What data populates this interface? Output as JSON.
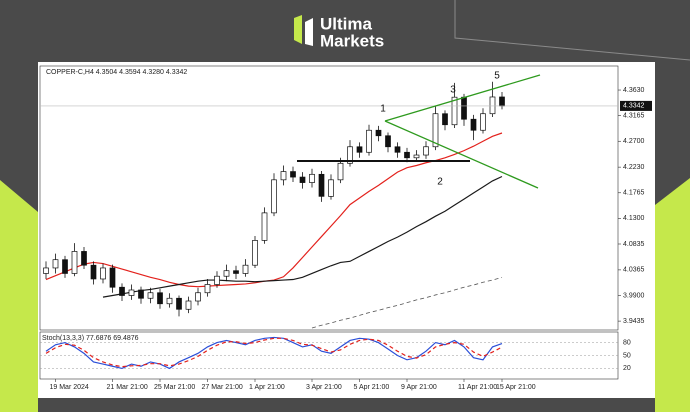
{
  "brand": [
    "Ultima",
    "Markets"
  ],
  "chart_data": {
    "type": "candlestick",
    "title": "COPPER-C,H4 4.3504 4.3594 4.3280 4.3342",
    "categories": [
      null,
      "19 Mar 2024",
      null,
      null,
      null,
      null,
      null,
      "21 Mar 21:00",
      null,
      null,
      null,
      null,
      "25 Mar 21:00",
      null,
      null,
      null,
      null,
      "27 Mar 21:00",
      null,
      null,
      null,
      null,
      "1 Apr 21:00",
      null,
      null,
      null,
      null,
      null,
      "3 Apr 21:00",
      null,
      null,
      null,
      null,
      "5 Apr 21:00",
      null,
      null,
      null,
      null,
      "9 Apr 21:00",
      null,
      null,
      null,
      null,
      null,
      "11 Apr 21:00",
      null,
      null,
      null,
      "15 Apr 21:00"
    ],
    "open": [
      4.03,
      4.04,
      4.055,
      4.03,
      4.07,
      4.045,
      4.02,
      4.04,
      4.005,
      3.99,
      4.0,
      3.985,
      3.995,
      3.975,
      3.985,
      3.965,
      3.98,
      3.995,
      4.01,
      4.025,
      4.035,
      4.03,
      4.045,
      4.09,
      4.14,
      4.2,
      4.215,
      4.205,
      4.195,
      4.21,
      4.17,
      4.2,
      4.23,
      4.26,
      4.25,
      4.29,
      4.28,
      4.26,
      4.25,
      4.24,
      4.245,
      4.26,
      4.32,
      4.3,
      4.35,
      4.31,
      4.29,
      4.32,
      4.3504
    ],
    "high": [
      4.052,
      4.066,
      4.062,
      4.085,
      4.078,
      4.052,
      4.048,
      4.046,
      4.012,
      4.01,
      4.006,
      4.004,
      4.002,
      3.994,
      3.99,
      3.988,
      4.004,
      4.02,
      4.034,
      4.046,
      4.044,
      4.056,
      4.098,
      4.15,
      4.212,
      4.226,
      4.224,
      4.214,
      4.22,
      4.216,
      4.21,
      4.24,
      4.272,
      4.268,
      4.3,
      4.298,
      4.286,
      4.268,
      4.258,
      4.254,
      4.27,
      4.334,
      4.326,
      4.376,
      4.356,
      4.318,
      4.33,
      4.378,
      4.3594
    ],
    "low": [
      4.02,
      4.03,
      4.022,
      4.025,
      4.038,
      4.01,
      4.012,
      3.995,
      3.98,
      3.982,
      3.975,
      3.976,
      3.966,
      3.968,
      3.952,
      3.958,
      3.972,
      3.988,
      4.004,
      4.016,
      4.02,
      4.024,
      4.04,
      4.084,
      4.134,
      4.19,
      4.196,
      4.184,
      4.186,
      4.16,
      4.164,
      4.194,
      4.224,
      4.24,
      4.244,
      4.27,
      4.25,
      4.24,
      4.232,
      4.234,
      4.238,
      4.254,
      4.29,
      4.294,
      4.298,
      4.272,
      4.284,
      4.314,
      4.328
    ],
    "close": [
      4.04,
      4.055,
      4.03,
      4.07,
      4.045,
      4.02,
      4.04,
      4.005,
      3.99,
      4.0,
      3.985,
      3.995,
      3.975,
      3.985,
      3.965,
      3.98,
      3.995,
      4.01,
      4.025,
      4.035,
      4.03,
      4.045,
      4.09,
      4.14,
      4.2,
      4.215,
      4.205,
      4.195,
      4.21,
      4.17,
      4.2,
      4.23,
      4.26,
      4.25,
      4.29,
      4.28,
      4.26,
      4.25,
      4.24,
      4.245,
      4.26,
      4.32,
      4.3,
      4.35,
      4.31,
      4.29,
      4.32,
      4.3504,
      4.3342
    ],
    "lines": [
      {
        "color": "#e3211c",
        "values": [
          4.019,
          4.026,
          4.033,
          4.04,
          4.047,
          4.05,
          4.048,
          4.043,
          4.038,
          4.033,
          4.028,
          4.023,
          4.019,
          4.014,
          4.01,
          4.007,
          4.006,
          4.007,
          4.008,
          4.009,
          4.01,
          4.011,
          4.013,
          4.016,
          4.018,
          4.024,
          4.04,
          4.059,
          4.078,
          4.097,
          4.116,
          4.135,
          4.155,
          4.167,
          4.179,
          4.19,
          4.202,
          4.214,
          4.222,
          4.226,
          4.231,
          4.235,
          4.24,
          4.246,
          4.253,
          4.261,
          4.27,
          4.279,
          4.285
        ]
      },
      {
        "color": "#1a1a1a",
        "values": [
          null,
          null,
          null,
          null,
          null,
          null,
          3.987,
          3.99,
          3.993,
          3.996,
          3.999,
          4.001,
          4.004,
          4.007,
          4.01,
          4.013,
          4.016,
          4.018,
          4.018,
          4.017,
          4.016,
          4.016,
          4.015,
          4.016,
          4.017,
          4.018,
          4.019,
          4.023,
          4.03,
          4.037,
          4.044,
          4.05,
          4.052,
          4.061,
          4.07,
          4.079,
          4.088,
          4.096,
          4.105,
          4.115,
          4.124,
          4.134,
          4.143,
          4.154,
          4.165,
          4.176,
          4.187,
          4.198,
          4.206
        ]
      },
      {
        "color": "#555555",
        "dashed": true,
        "values": [
          null,
          null,
          null,
          null,
          null,
          null,
          null,
          null,
          null,
          null,
          null,
          null,
          null,
          null,
          null,
          null,
          null,
          null,
          null,
          null,
          null,
          null,
          null,
          null,
          null,
          null,
          null,
          null,
          3.931,
          3.936,
          3.94,
          3.945,
          3.949,
          3.954,
          3.959,
          3.963,
          3.968,
          3.972,
          3.977,
          3.982,
          3.986,
          3.991,
          3.995,
          4.0,
          4.005,
          4.009,
          4.014,
          4.018,
          4.023
        ]
      }
    ],
    "ylim": [
      3.931,
      4.403
    ],
    "yticks": [
      {
        "value": 4.363,
        "label": "4.3630"
      },
      {
        "value": 4.3165,
        "label": "4.3165"
      },
      {
        "value": 4.27,
        "label": "4.2700"
      },
      {
        "value": 4.223,
        "label": "4.2230"
      },
      {
        "value": 4.1765,
        "label": "4.1765"
      },
      {
        "value": 4.13,
        "label": "4.1300"
      },
      {
        "value": 4.0835,
        "label": "4.0835"
      },
      {
        "value": 4.0365,
        "label": "4.0365"
      },
      {
        "value": 3.99,
        "label": "3.9900"
      },
      {
        "value": 3.9435,
        "label": "3.9435"
      }
    ],
    "wave_labels": [
      "1",
      "2",
      "3",
      "5"
    ],
    "indicator": {
      "title": "Stoch(13,3,3) 77.6876 69.4876",
      "ylim": [
        0,
        100
      ],
      "yticks": [
        80,
        50,
        20
      ],
      "lines": [
        {
          "color": "#2b4fd8",
          "values": [
            60,
            75,
            80,
            70,
            55,
            35,
            30,
            25,
            20,
            30,
            25,
            35,
            30,
            20,
            35,
            45,
            55,
            70,
            80,
            85,
            80,
            75,
            85,
            90,
            92,
            90,
            80,
            70,
            75,
            60,
            55,
            70,
            85,
            90,
            88,
            80,
            65,
            50,
            40,
            45,
            60,
            80,
            75,
            85,
            70,
            45,
            40,
            70,
            77.6876
          ]
        },
        {
          "color": "#e3211c",
          "dashed": true,
          "values": [
            55,
            68,
            76,
            74,
            62,
            45,
            35,
            28,
            24,
            26,
            27,
            31,
            31,
            26,
            30,
            38,
            48,
            62,
            74,
            82,
            82,
            78,
            80,
            86,
            90,
            90,
            85,
            76,
            74,
            66,
            58,
            63,
            76,
            85,
            88,
            85,
            74,
            60,
            48,
            44,
            52,
            70,
            76,
            80,
            76,
            58,
            48,
            58,
            69.4876
          ]
        }
      ]
    }
  }
}
